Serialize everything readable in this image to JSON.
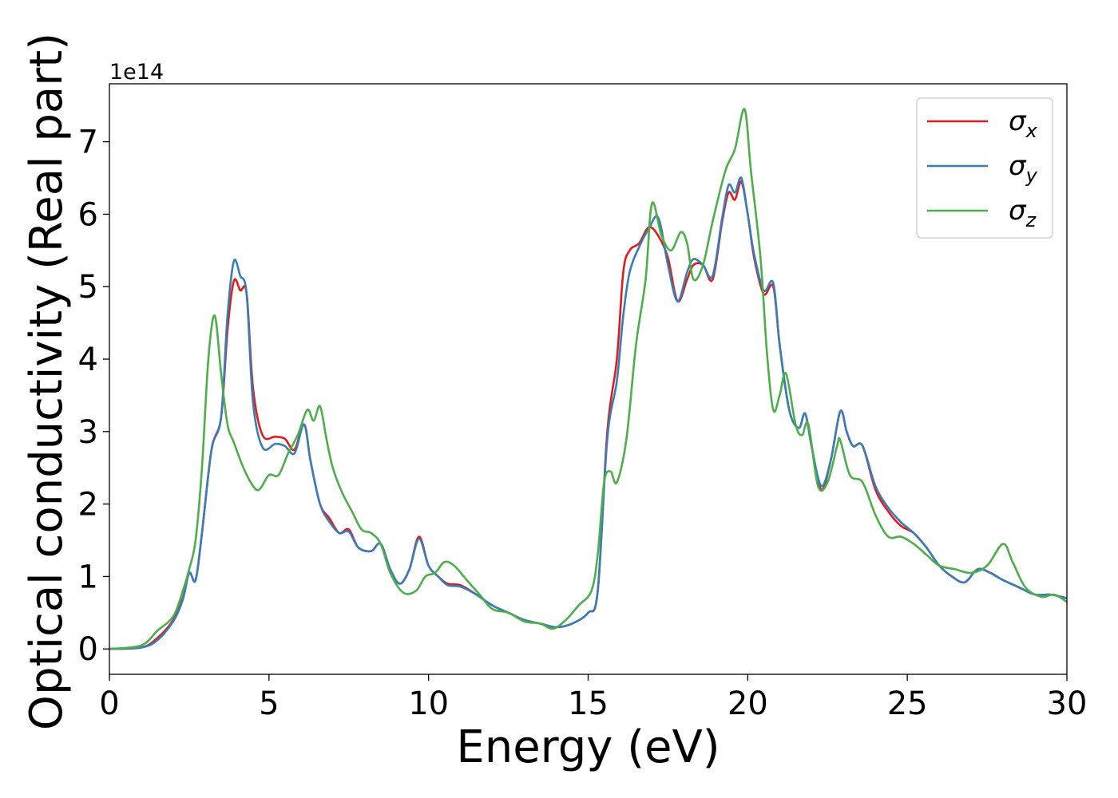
{
  "chart_data": {
    "type": "line",
    "title": "",
    "xlabel": "Energy (eV)",
    "ylabel": "Optical conductivity (Real part)",
    "y_offset_label": "1e14",
    "xlim": [
      0,
      30
    ],
    "ylim": [
      -0.35,
      7.8
    ],
    "xticks": [
      0,
      5,
      10,
      15,
      20,
      25,
      30
    ],
    "yticks": [
      0,
      1,
      2,
      3,
      4,
      5,
      6,
      7
    ],
    "grid": false,
    "legend_position": "top-right",
    "series": [
      {
        "name": "σx",
        "symbol": "σ",
        "subscript": "x",
        "color": "#e41a1c",
        "points": [
          [
            0,
            0
          ],
          [
            1,
            0.02
          ],
          [
            1.5,
            0.15
          ],
          [
            2,
            0.4
          ],
          [
            2.3,
            0.7
          ],
          [
            2.5,
            1.05
          ],
          [
            2.7,
            0.95
          ],
          [
            2.9,
            1.6
          ],
          [
            3.2,
            2.75
          ],
          [
            3.5,
            3.2
          ],
          [
            3.7,
            4.4
          ],
          [
            3.9,
            5.08
          ],
          [
            4.1,
            4.95
          ],
          [
            4.3,
            4.9
          ],
          [
            4.5,
            3.6
          ],
          [
            4.8,
            2.95
          ],
          [
            5.2,
            2.93
          ],
          [
            5.5,
            2.9
          ],
          [
            5.8,
            2.75
          ],
          [
            6.1,
            3.1
          ],
          [
            6.3,
            2.6
          ],
          [
            6.6,
            2.0
          ],
          [
            6.9,
            1.8
          ],
          [
            7.2,
            1.6
          ],
          [
            7.5,
            1.65
          ],
          [
            7.8,
            1.4
          ],
          [
            8.2,
            1.35
          ],
          [
            8.5,
            1.45
          ],
          [
            8.8,
            1.1
          ],
          [
            9.1,
            0.9
          ],
          [
            9.4,
            1.1
          ],
          [
            9.7,
            1.55
          ],
          [
            10,
            1.15
          ],
          [
            10.3,
            1.0
          ],
          [
            10.6,
            0.9
          ],
          [
            11,
            0.88
          ],
          [
            11.5,
            0.75
          ],
          [
            12,
            0.6
          ],
          [
            12.5,
            0.5
          ],
          [
            13,
            0.4
          ],
          [
            13.5,
            0.35
          ],
          [
            14,
            0.3
          ],
          [
            14.5,
            0.35
          ],
          [
            15,
            0.5
          ],
          [
            15.3,
            0.8
          ],
          [
            15.6,
            3.0
          ],
          [
            15.9,
            4.0
          ],
          [
            16.1,
            5.2
          ],
          [
            16.3,
            5.5
          ],
          [
            16.6,
            5.6
          ],
          [
            16.9,
            5.82
          ],
          [
            17.2,
            5.7
          ],
          [
            17.5,
            5.4
          ],
          [
            17.8,
            4.8
          ],
          [
            18.1,
            5.1
          ],
          [
            18.3,
            5.3
          ],
          [
            18.6,
            5.3
          ],
          [
            18.9,
            5.1
          ],
          [
            19.2,
            5.9
          ],
          [
            19.4,
            6.3
          ],
          [
            19.6,
            6.2
          ],
          [
            19.8,
            6.45
          ],
          [
            20,
            6.0
          ],
          [
            20.2,
            5.4
          ],
          [
            20.5,
            4.9
          ],
          [
            20.8,
            5.0
          ],
          [
            21,
            4.2
          ],
          [
            21.3,
            3.3
          ],
          [
            21.6,
            3.05
          ],
          [
            21.8,
            3.25
          ],
          [
            22,
            2.8
          ],
          [
            22.3,
            2.2
          ],
          [
            22.6,
            2.6
          ],
          [
            22.9,
            3.28
          ],
          [
            23.1,
            3.0
          ],
          [
            23.3,
            2.8
          ],
          [
            23.6,
            2.8
          ],
          [
            24,
            2.2
          ],
          [
            24.4,
            1.9
          ],
          [
            24.8,
            1.7
          ],
          [
            25.2,
            1.6
          ],
          [
            25.6,
            1.4
          ],
          [
            26,
            1.15
          ],
          [
            26.4,
            1.0
          ],
          [
            26.8,
            0.92
          ],
          [
            27.2,
            1.1
          ],
          [
            27.6,
            1.05
          ],
          [
            28,
            0.95
          ],
          [
            28.5,
            0.85
          ],
          [
            29,
            0.75
          ],
          [
            29.5,
            0.75
          ],
          [
            30,
            0.7
          ]
        ]
      },
      {
        "name": "σy",
        "symbol": "σ",
        "subscript": "y",
        "color": "#377eb8",
        "points": [
          [
            0,
            0
          ],
          [
            1,
            0.02
          ],
          [
            1.5,
            0.12
          ],
          [
            2,
            0.38
          ],
          [
            2.3,
            0.68
          ],
          [
            2.5,
            1.05
          ],
          [
            2.7,
            0.95
          ],
          [
            2.9,
            1.6
          ],
          [
            3.2,
            2.75
          ],
          [
            3.5,
            3.2
          ],
          [
            3.7,
            4.6
          ],
          [
            3.9,
            5.35
          ],
          [
            4.1,
            5.15
          ],
          [
            4.3,
            4.9
          ],
          [
            4.5,
            3.4
          ],
          [
            4.8,
            2.78
          ],
          [
            5.2,
            2.83
          ],
          [
            5.5,
            2.8
          ],
          [
            5.8,
            2.7
          ],
          [
            6.1,
            3.1
          ],
          [
            6.3,
            2.6
          ],
          [
            6.6,
            2.0
          ],
          [
            6.9,
            1.75
          ],
          [
            7.2,
            1.6
          ],
          [
            7.5,
            1.62
          ],
          [
            7.8,
            1.4
          ],
          [
            8.2,
            1.35
          ],
          [
            8.5,
            1.45
          ],
          [
            8.8,
            1.1
          ],
          [
            9.1,
            0.9
          ],
          [
            9.4,
            1.1
          ],
          [
            9.7,
            1.52
          ],
          [
            10,
            1.15
          ],
          [
            10.3,
            1.0
          ],
          [
            10.6,
            0.88
          ],
          [
            11,
            0.86
          ],
          [
            11.5,
            0.75
          ],
          [
            12,
            0.6
          ],
          [
            12.5,
            0.5
          ],
          [
            13,
            0.4
          ],
          [
            13.5,
            0.35
          ],
          [
            14,
            0.3
          ],
          [
            14.5,
            0.35
          ],
          [
            15,
            0.5
          ],
          [
            15.3,
            0.8
          ],
          [
            15.6,
            2.9
          ],
          [
            15.9,
            3.7
          ],
          [
            16.1,
            4.6
          ],
          [
            16.3,
            5.2
          ],
          [
            16.6,
            5.55
          ],
          [
            16.9,
            5.8
          ],
          [
            17.2,
            5.95
          ],
          [
            17.5,
            5.3
          ],
          [
            17.8,
            4.8
          ],
          [
            18.1,
            5.2
          ],
          [
            18.3,
            5.38
          ],
          [
            18.6,
            5.3
          ],
          [
            18.9,
            5.15
          ],
          [
            19.2,
            5.95
          ],
          [
            19.4,
            6.4
          ],
          [
            19.6,
            6.3
          ],
          [
            19.8,
            6.5
          ],
          [
            20,
            6.0
          ],
          [
            20.2,
            5.45
          ],
          [
            20.5,
            4.95
          ],
          [
            20.8,
            5.05
          ],
          [
            21,
            4.2
          ],
          [
            21.3,
            3.3
          ],
          [
            21.6,
            3.05
          ],
          [
            21.8,
            3.25
          ],
          [
            22,
            2.8
          ],
          [
            22.3,
            2.25
          ],
          [
            22.6,
            2.6
          ],
          [
            22.9,
            3.28
          ],
          [
            23.1,
            3.0
          ],
          [
            23.3,
            2.8
          ],
          [
            23.6,
            2.8
          ],
          [
            24,
            2.25
          ],
          [
            24.4,
            1.95
          ],
          [
            24.8,
            1.75
          ],
          [
            25.2,
            1.6
          ],
          [
            25.6,
            1.4
          ],
          [
            26,
            1.15
          ],
          [
            26.4,
            1.0
          ],
          [
            26.8,
            0.92
          ],
          [
            27.2,
            1.1
          ],
          [
            27.6,
            1.05
          ],
          [
            28,
            0.95
          ],
          [
            28.5,
            0.85
          ],
          [
            29,
            0.75
          ],
          [
            29.5,
            0.75
          ],
          [
            30,
            0.7
          ]
        ]
      },
      {
        "name": "σz",
        "symbol": "σ",
        "subscript": "z",
        "color": "#4daf4a",
        "points": [
          [
            0,
            0
          ],
          [
            1,
            0.05
          ],
          [
            1.5,
            0.25
          ],
          [
            2,
            0.45
          ],
          [
            2.3,
            0.8
          ],
          [
            2.5,
            1.1
          ],
          [
            2.7,
            1.5
          ],
          [
            2.9,
            2.5
          ],
          [
            3.1,
            4.0
          ],
          [
            3.3,
            4.6
          ],
          [
            3.5,
            3.8
          ],
          [
            3.7,
            3.1
          ],
          [
            3.9,
            2.85
          ],
          [
            4.2,
            2.5
          ],
          [
            4.5,
            2.25
          ],
          [
            4.7,
            2.2
          ],
          [
            5,
            2.4
          ],
          [
            5.3,
            2.4
          ],
          [
            5.6,
            2.7
          ],
          [
            5.9,
            2.95
          ],
          [
            6.2,
            3.3
          ],
          [
            6.4,
            3.15
          ],
          [
            6.6,
            3.35
          ],
          [
            6.8,
            2.9
          ],
          [
            7,
            2.5
          ],
          [
            7.3,
            2.15
          ],
          [
            7.6,
            1.9
          ],
          [
            7.9,
            1.65
          ],
          [
            8.2,
            1.6
          ],
          [
            8.5,
            1.45
          ],
          [
            8.8,
            1.05
          ],
          [
            9.2,
            0.78
          ],
          [
            9.6,
            0.8
          ],
          [
            9.9,
            1.0
          ],
          [
            10.2,
            1.05
          ],
          [
            10.5,
            1.2
          ],
          [
            10.8,
            1.15
          ],
          [
            11.2,
            0.95
          ],
          [
            11.6,
            0.75
          ],
          [
            12,
            0.55
          ],
          [
            12.5,
            0.5
          ],
          [
            13,
            0.38
          ],
          [
            13.5,
            0.35
          ],
          [
            13.9,
            0.28
          ],
          [
            14.3,
            0.4
          ],
          [
            14.7,
            0.6
          ],
          [
            15.1,
            0.8
          ],
          [
            15.3,
            1.3
          ],
          [
            15.5,
            2.3
          ],
          [
            15.7,
            2.45
          ],
          [
            15.9,
            2.3
          ],
          [
            16.2,
            2.9
          ],
          [
            16.5,
            4.2
          ],
          [
            16.8,
            5.1
          ],
          [
            17.0,
            6.15
          ],
          [
            17.3,
            5.7
          ],
          [
            17.6,
            5.5
          ],
          [
            17.9,
            5.75
          ],
          [
            18.1,
            5.6
          ],
          [
            18.3,
            5.1
          ],
          [
            18.6,
            5.3
          ],
          [
            18.9,
            5.9
          ],
          [
            19.3,
            6.6
          ],
          [
            19.6,
            6.9
          ],
          [
            19.9,
            7.45
          ],
          [
            20.1,
            6.6
          ],
          [
            20.4,
            5.4
          ],
          [
            20.6,
            4.1
          ],
          [
            20.8,
            3.3
          ],
          [
            21,
            3.5
          ],
          [
            21.2,
            3.8
          ],
          [
            21.5,
            3.1
          ],
          [
            21.7,
            2.95
          ],
          [
            21.9,
            3.1
          ],
          [
            22.2,
            2.25
          ],
          [
            22.5,
            2.3
          ],
          [
            22.8,
            2.8
          ],
          [
            22.9,
            2.88
          ],
          [
            23.2,
            2.4
          ],
          [
            23.6,
            2.3
          ],
          [
            24,
            1.85
          ],
          [
            24.4,
            1.55
          ],
          [
            24.8,
            1.55
          ],
          [
            25.2,
            1.45
          ],
          [
            25.6,
            1.3
          ],
          [
            26,
            1.15
          ],
          [
            26.5,
            1.1
          ],
          [
            27,
            1.05
          ],
          [
            27.5,
            1.15
          ],
          [
            28,
            1.45
          ],
          [
            28.3,
            1.2
          ],
          [
            28.7,
            0.85
          ],
          [
            29.2,
            0.72
          ],
          [
            29.6,
            0.75
          ],
          [
            30,
            0.65
          ]
        ]
      }
    ]
  }
}
